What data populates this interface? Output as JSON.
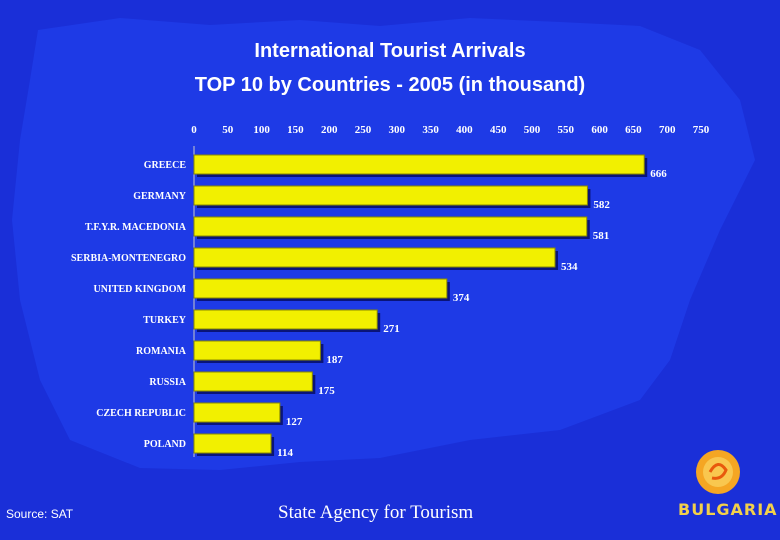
{
  "header": {
    "title_line1": "International Tourist Arrivals",
    "title_line2": "TOP 10 by Countries - 2005 (in thousand)"
  },
  "footer": {
    "source": "Source: SAT",
    "agency": "State Agency for Tourism",
    "logo_text": "BULGARIA"
  },
  "colors": {
    "background": "#1a2fd8",
    "map": "#1e3ae6",
    "bar": "#f2f000",
    "label": "#ffffff"
  },
  "chart_data": {
    "type": "bar",
    "orientation": "horizontal",
    "categories": [
      "GREECE",
      "GERMANY",
      "T.F.Y.R. MACEDONIA",
      "SERBIA-MONTENEGRO",
      "UNITED KINGDOM",
      "TURKEY",
      "ROMANIA",
      "RUSSIA",
      "CZECH REPUBLIC",
      "POLAND"
    ],
    "values": [
      666,
      582,
      581,
      534,
      374,
      271,
      187,
      175,
      127,
      114
    ],
    "xlim": [
      0,
      750
    ],
    "ticks": [
      0,
      50,
      100,
      150,
      200,
      250,
      300,
      350,
      400,
      450,
      500,
      550,
      600,
      650,
      700,
      750
    ],
    "axis_position": "top",
    "grid": false,
    "legend": "none"
  }
}
